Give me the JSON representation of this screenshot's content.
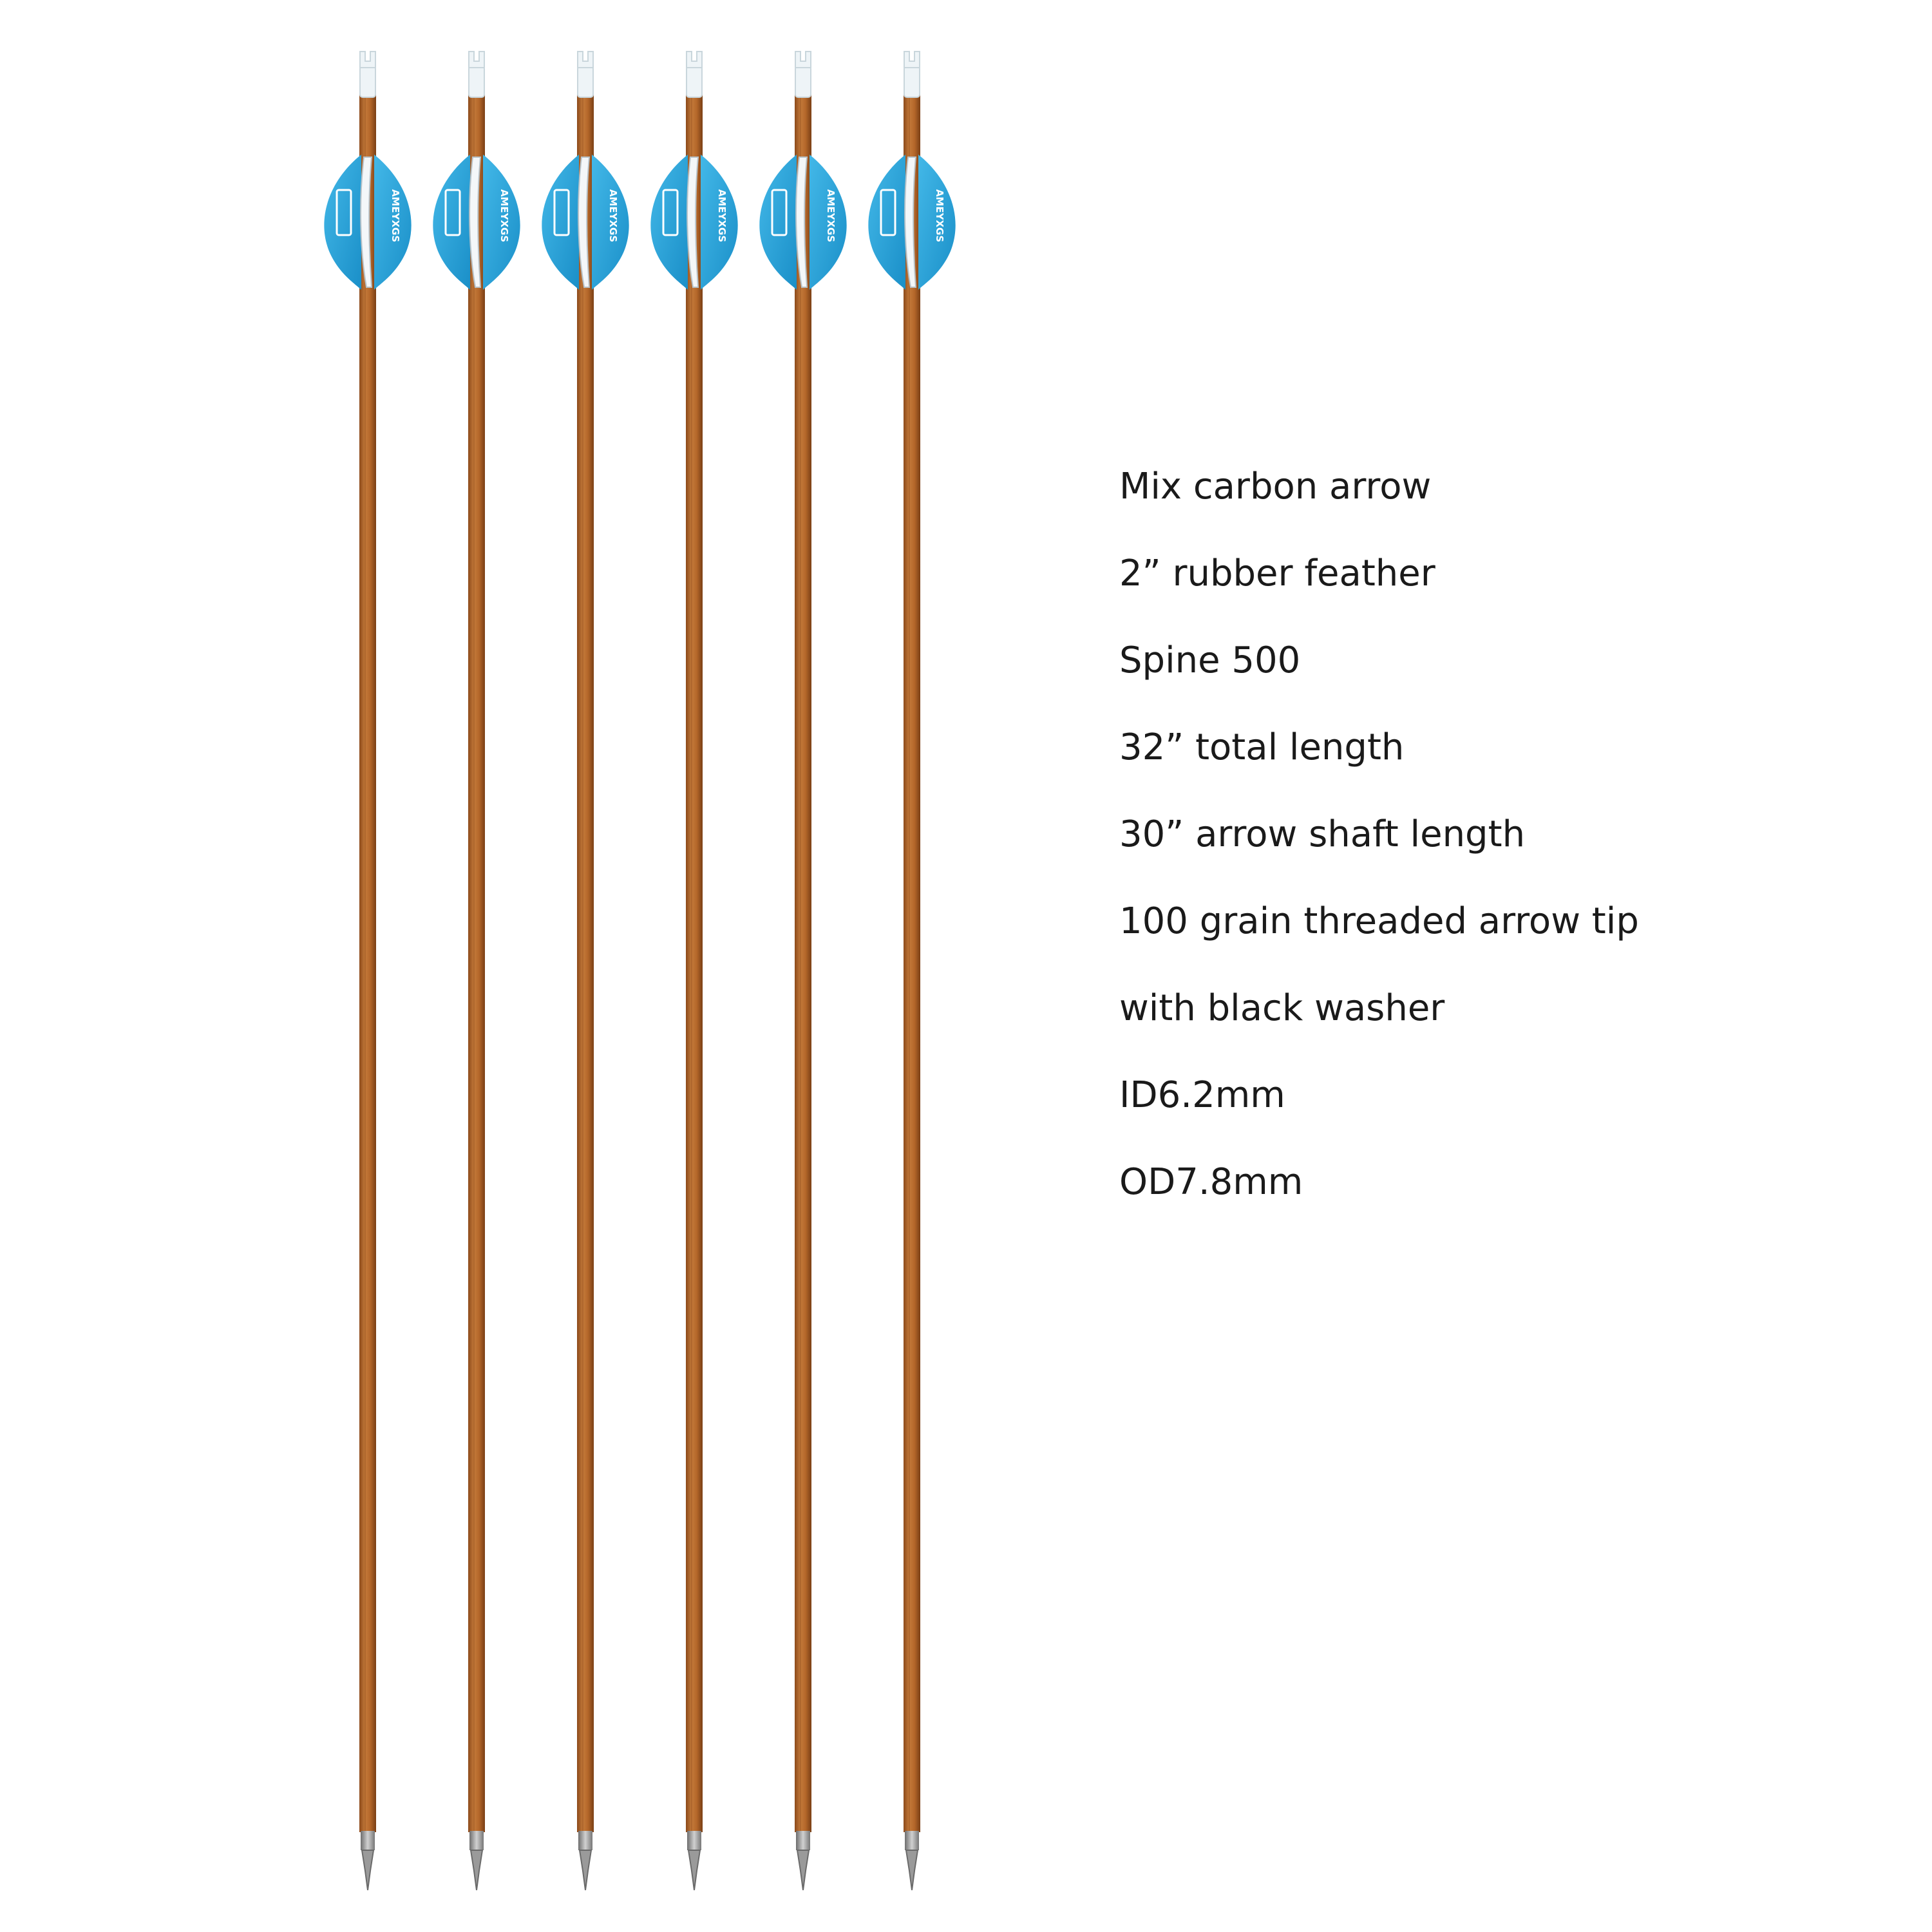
{
  "product_image": {
    "arrow_count": 6,
    "vane_brand_text": "AMEYXGS",
    "colors": {
      "background": "#ffffff",
      "shaft": "#b4672a",
      "shaft_dark": "#8c4a1a",
      "vane": "#2aa5d9",
      "vane_dark": "#167fb4",
      "nock": "#eef4f7",
      "tip": "#9a9a9a"
    }
  },
  "specs": [
    "Mix carbon arrow",
    "2”  rubber feather",
    "Spine 500",
    "32”  total  length",
    "30”  arrow shaft length",
    "100 grain threaded arrow tip",
    "with black washer",
    "ID6.2mm",
    "OD7.8mm"
  ]
}
